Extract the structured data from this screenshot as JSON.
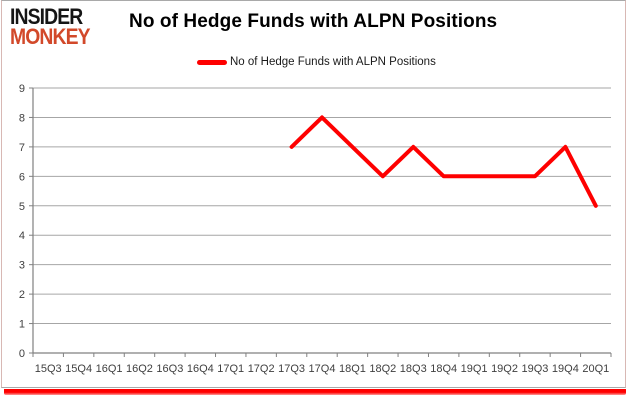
{
  "logo": {
    "line1": "INSIDER",
    "line2": "MONKEY",
    "line1_color": "#151515",
    "line2_color": "#d2492a"
  },
  "header": {
    "title": "No of Hedge Funds with ALPN Positions"
  },
  "colors": {
    "series_line": "#fe0000",
    "bottom_accent": "#ff0000",
    "gridline": "#a6a6a6",
    "axis": "#808080",
    "tick_label": "#404040"
  },
  "chart_data": {
    "type": "line",
    "title": "No of Hedge Funds with ALPN Positions",
    "xlabel": "",
    "ylabel": "",
    "ylim": [
      0,
      9
    ],
    "ytick_step": 1,
    "grid": true,
    "legend_position": "top",
    "categories": [
      "15Q3",
      "15Q4",
      "16Q1",
      "16Q2",
      "16Q3",
      "16Q4",
      "17Q1",
      "17Q2",
      "17Q3",
      "17Q4",
      "18Q1",
      "18Q2",
      "18Q3",
      "18Q4",
      "19Q1",
      "19Q2",
      "19Q3",
      "19Q4",
      "20Q1"
    ],
    "series": [
      {
        "name": "No of Hedge Funds with ALPN Positions",
        "color": "#fe0000",
        "values": [
          null,
          null,
          null,
          null,
          null,
          null,
          null,
          null,
          7,
          8,
          7,
          6,
          7,
          6,
          6,
          6,
          6,
          7,
          5
        ]
      }
    ]
  }
}
